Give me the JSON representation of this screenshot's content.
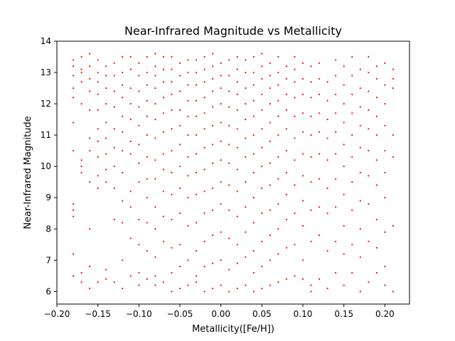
{
  "chart_data": {
    "type": "scatter",
    "title": "Near-Infrared Magnitude vs Metallicity",
    "xlabel": "Metallicity([Fe/H])",
    "ylabel": "Near-Infrared Magnitude",
    "xlim": [
      -0.2,
      0.23
    ],
    "ylim": [
      5.6,
      14.0
    ],
    "xticks": [
      -0.2,
      -0.15,
      -0.1,
      -0.05,
      0.0,
      0.05,
      0.1,
      0.15,
      0.2
    ],
    "xtick_labels": [
      "−0.20",
      "−0.15",
      "−0.10",
      "−0.05",
      "0.00",
      "0.05",
      "0.10",
      "0.15",
      "0.20"
    ],
    "yticks": [
      6,
      7,
      8,
      9,
      10,
      11,
      12,
      13,
      14
    ],
    "ytick_labels": [
      "6",
      "7",
      "8",
      "9",
      "10",
      "11",
      "12",
      "13",
      "14"
    ],
    "grid": false,
    "marker_color": "#ff0000",
    "series": [
      {
        "columns": [
          {
            "x": -0.18,
            "y": [
              6.5,
              7.2,
              8.4,
              8.6,
              8.8,
              10.5,
              11.4,
              12.2,
              12.5,
              12.9,
              13.2,
              13.4
            ]
          },
          {
            "x": -0.17,
            "y": [
              6.3,
              6.6,
              9.8,
              10.0,
              10.2,
              12.0,
              12.7,
              13.0,
              13.1,
              13.5
            ]
          },
          {
            "x": -0.16,
            "y": [
              6.1,
              6.8,
              8.0,
              9.5,
              10.5,
              10.9,
              11.8,
              12.4,
              12.8,
              13.2,
              13.6
            ]
          },
          {
            "x": -0.15,
            "y": [
              6.3,
              9.3,
              9.7,
              10.3,
              10.8,
              11.2,
              11.8,
              12.3,
              12.7,
              13.0,
              13.4
            ]
          },
          {
            "x": -0.14,
            "y": [
              6.4,
              6.7,
              9.5,
              9.9,
              10.4,
              10.9,
              11.4,
              12.0,
              12.5,
              12.9,
              13.2
            ]
          },
          {
            "x": -0.13,
            "y": [
              6.3,
              8.3,
              9.3,
              10.0,
              10.6,
              11.2,
              11.9,
              12.4,
              12.9,
              13.3
            ]
          },
          {
            "x": -0.12,
            "y": [
              6.1,
              7.0,
              8.2,
              8.9,
              9.8,
              10.5,
              11.1,
              11.6,
              12.2,
              12.6,
              13.0,
              13.5
            ]
          },
          {
            "x": -0.11,
            "y": [
              6.5,
              7.7,
              8.7,
              9.2,
              10.4,
              10.8,
              11.5,
              12.0,
              12.5,
              13.1,
              13.5
            ]
          },
          {
            "x": -0.1,
            "y": [
              6.2,
              6.6,
              7.5,
              8.3,
              9.5,
              10.1,
              10.7,
              11.3,
              11.9,
              12.4,
              12.9,
              13.3
            ]
          },
          {
            "x": -0.09,
            "y": [
              6.4,
              7.3,
              8.2,
              9.0,
              9.6,
              10.3,
              11.0,
              11.6,
              12.1,
              12.6,
              13.0,
              13.5
            ]
          },
          {
            "x": -0.08,
            "y": [
              6.2,
              6.5,
              7.1,
              8.0,
              8.7,
              9.6,
              10.2,
              10.9,
              11.5,
              12.0,
              12.5,
              12.9,
              13.2,
              13.6
            ]
          },
          {
            "x": -0.07,
            "y": [
              6.3,
              7.6,
              8.4,
              9.2,
              9.9,
              10.4,
              11.1,
              11.7,
              12.2,
              12.7,
              13.1,
              13.5
            ]
          },
          {
            "x": -0.06,
            "y": [
              6.0,
              6.6,
              7.4,
              8.3,
              9.1,
              9.8,
              10.5,
              11.2,
              11.8,
              12.3,
              12.7,
              13.1,
              13.5
            ]
          },
          {
            "x": -0.05,
            "y": [
              6.1,
              6.8,
              7.5,
              8.5,
              9.3,
              10.0,
              10.7,
              11.3,
              11.8,
              12.4,
              12.9,
              13.3
            ]
          },
          {
            "x": -0.04,
            "y": [
              6.2,
              7.0,
              8.1,
              9.0,
              9.7,
              10.3,
              11.0,
              11.6,
              12.1,
              12.6,
              13.0,
              13.4
            ]
          },
          {
            "x": -0.03,
            "y": [
              6.3,
              6.5,
              7.3,
              8.2,
              9.1,
              9.8,
              10.4,
              11.0,
              11.6,
              12.1,
              12.6,
              13.0,
              13.4
            ]
          },
          {
            "x": -0.02,
            "y": [
              6.0,
              6.8,
              7.6,
              8.5,
              9.2,
              9.9,
              10.6,
              11.2,
              11.7,
              12.2,
              12.7,
              13.1,
              13.5
            ]
          },
          {
            "x": -0.01,
            "y": [
              6.1,
              6.9,
              7.8,
              8.6,
              9.3,
              10.1,
              10.7,
              11.3,
              11.9,
              12.4,
              12.8,
              13.2,
              13.6
            ]
          },
          {
            "x": 0.0,
            "y": [
              6.2,
              7.0,
              7.9,
              8.8,
              9.5,
              10.2,
              10.8,
              11.4,
              12.0,
              12.5,
              12.9,
              13.3
            ]
          },
          {
            "x": 0.01,
            "y": [
              6.0,
              6.7,
              7.7,
              8.6,
              9.4,
              10.1,
              10.7,
              11.3,
              11.9,
              12.4,
              12.9,
              13.4
            ]
          },
          {
            "x": 0.02,
            "y": [
              6.1,
              6.9,
              7.5,
              8.4,
              9.2,
              9.9,
              10.6,
              11.2,
              11.8,
              12.3,
              12.7,
              13.1,
              13.5
            ]
          },
          {
            "x": 0.03,
            "y": [
              6.2,
              7.1,
              7.9,
              8.7,
              9.5,
              10.3,
              10.9,
              11.5,
              12.0,
              12.5,
              13.0,
              13.4
            ]
          },
          {
            "x": 0.04,
            "y": [
              6.0,
              6.6,
              7.3,
              8.2,
              9.0,
              9.8,
              10.4,
              11.0,
              11.6,
              12.1,
              12.6,
              13.0,
              13.5
            ]
          },
          {
            "x": 0.05,
            "y": [
              6.1,
              6.8,
              7.6,
              8.5,
              9.3,
              10.0,
              10.6,
              11.2,
              11.8,
              12.3,
              12.8,
              13.2,
              13.6
            ]
          },
          {
            "x": 0.06,
            "y": [
              6.2,
              7.0,
              7.8,
              8.6,
              9.4,
              10.1,
              10.8,
              11.4,
              12.0,
              12.5,
              12.9,
              13.3
            ]
          },
          {
            "x": 0.07,
            "y": [
              6.3,
              7.2,
              8.0,
              8.8,
              9.6,
              10.3,
              11.0,
              11.6,
              12.1,
              12.6,
              13.0,
              13.5
            ]
          },
          {
            "x": 0.08,
            "y": [
              6.4,
              7.4,
              8.3,
              9.1,
              9.8,
              10.5,
              11.2,
              11.8,
              12.3,
              12.8,
              13.2
            ]
          },
          {
            "x": 0.09,
            "y": [
              6.5,
              7.5,
              8.5,
              9.4,
              10.2,
              10.9,
              11.6,
              12.2,
              12.7,
              13.1,
              13.5
            ]
          },
          {
            "x": 0.1,
            "y": [
              6.4,
              7.0,
              8.1,
              8.9,
              9.7,
              10.4,
              11.1,
              11.7,
              12.3,
              12.8,
              13.3
            ]
          },
          {
            "x": 0.11,
            "y": [
              6.0,
              6.2,
              7.6,
              8.6,
              9.5,
              10.3,
              11.0,
              11.6,
              12.2,
              12.7,
              13.2
            ]
          },
          {
            "x": 0.12,
            "y": [
              6.4,
              7.8,
              8.7,
              9.6,
              10.4,
              11.1,
              11.7,
              12.3,
              12.8,
              13.3
            ]
          },
          {
            "x": 0.13,
            "y": [
              6.1,
              7.3,
              8.5,
              9.3,
              10.2,
              10.9,
              11.5,
              12.1,
              12.7
            ]
          },
          {
            "x": 0.14,
            "y": [
              6.6,
              7.6,
              8.7,
              9.6,
              10.4,
              11.1,
              11.7,
              12.3,
              12.9,
              13.4
            ]
          },
          {
            "x": 0.15,
            "y": [
              6.2,
              7.2,
              8.1,
              9.1,
              10.0,
              10.7,
              11.4,
              12.0,
              12.6,
              13.2
            ]
          },
          {
            "x": 0.16,
            "y": [
              6.6,
              7.5,
              8.6,
              9.5,
              10.3,
              11.0,
              11.7,
              12.3,
              12.9,
              13.5
            ]
          },
          {
            "x": 0.17,
            "y": [
              6.0,
              7.1,
              8.0,
              8.9,
              9.8,
              10.6,
              11.3,
              11.9,
              12.5,
              13.1
            ]
          },
          {
            "x": 0.18,
            "y": [
              6.3,
              7.6,
              8.8,
              9.7,
              10.5,
              11.2,
              11.8,
              12.4,
              13.0,
              13.5
            ]
          },
          {
            "x": 0.19,
            "y": [
              6.6,
              7.4,
              8.3,
              9.4,
              10.2,
              11.0,
              11.6,
              12.2,
              12.8,
              13.2
            ]
          },
          {
            "x": 0.2,
            "y": [
              6.2,
              6.8,
              7.9,
              9.0,
              9.8,
              10.5,
              11.3,
              12.0,
              12.6,
              13.3
            ]
          },
          {
            "x": 0.21,
            "y": [
              6.0,
              8.1,
              10.3,
              11.0,
              12.5,
              12.8,
              13.1
            ]
          }
        ]
      }
    ]
  }
}
